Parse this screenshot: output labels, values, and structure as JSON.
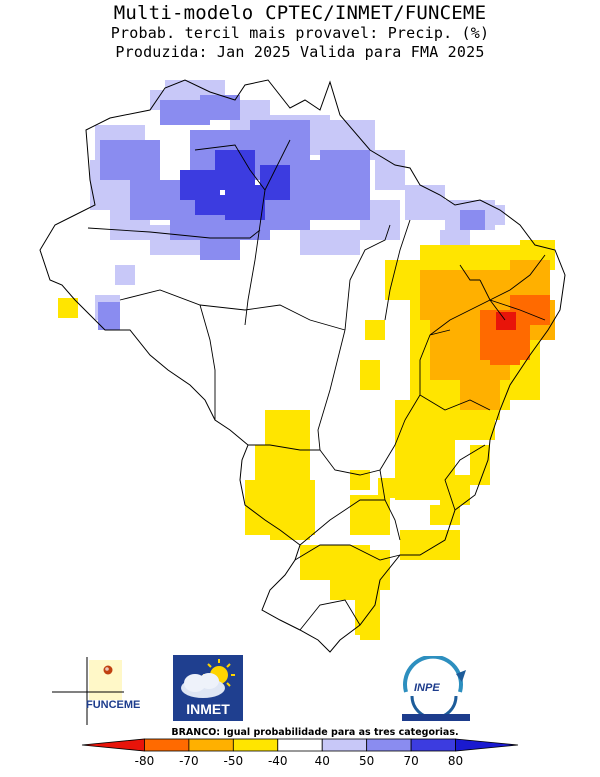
{
  "header": {
    "title": "Multi-modelo CPTEC/INMET/FUNCEME",
    "subtitle": "Probab. tercil mais provavel: Precip. (%)",
    "produced": "Produzida: Jan 2025  Valida para FMA 2025"
  },
  "logos": {
    "funceme": "FUNCEME",
    "inmet": "INMET",
    "inpe": "INPE"
  },
  "note": "BRANCO: Igual probabilidade para as tres categorias.",
  "legend": {
    "ticks": [
      "-80",
      "-70",
      "-50",
      "-40",
      "40",
      "50",
      "70",
      "80"
    ],
    "colors": [
      "#e8140a",
      "#ff6a00",
      "#ffb000",
      "#ffe500",
      "#ffffff",
      "#c8c8f8",
      "#8a8cf0",
      "#3c3ce0",
      "#1a1ad0"
    ]
  },
  "map": {
    "region": "Brasil",
    "fill_classes": {
      "above_40": "#c8c8f8",
      "above_50": "#8a8cf0",
      "above_70": "#3c3ce0",
      "below_40": "#ffe500",
      "below_50": "#ffb000",
      "below_70": "#ff6a00",
      "below_80": "#e8140a"
    }
  }
}
